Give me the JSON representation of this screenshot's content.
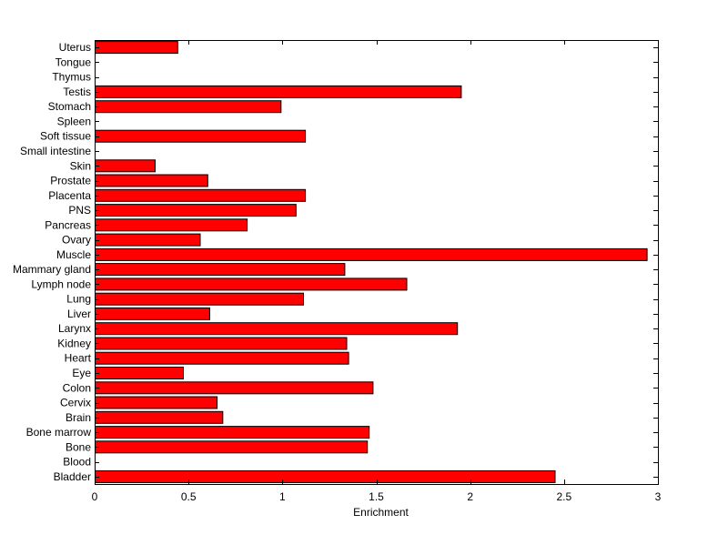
{
  "chart_data": {
    "type": "bar",
    "orientation": "horizontal",
    "title": "",
    "xlabel": "Enrichment",
    "ylabel": "",
    "xlim": [
      0,
      3
    ],
    "xticks": [
      "0",
      "0.5",
      "1",
      "1.5",
      "2",
      "2.5",
      "3"
    ],
    "grid": false,
    "bar_color": "#ff0000",
    "bar_edge_color": "#000000",
    "categories": [
      "Bladder",
      "Blood",
      "Bone",
      "Bone marrow",
      "Brain",
      "Cervix",
      "Colon",
      "Eye",
      "Heart",
      "Kidney",
      "Larynx",
      "Liver",
      "Lung",
      "Lymph node",
      "Mammary gland",
      "Muscle",
      "Ovary",
      "Pancreas",
      "PNS",
      "Placenta",
      "Prostate",
      "Skin",
      "Small intestine",
      "Soft tissue",
      "Spleen",
      "Stomach",
      "Testis",
      "Thymus",
      "Tongue",
      "Uterus"
    ],
    "values": [
      2.45,
      0,
      1.45,
      1.46,
      0.68,
      0.65,
      1.48,
      0.47,
      1.35,
      1.34,
      1.93,
      0.61,
      1.11,
      1.66,
      1.33,
      2.94,
      0.56,
      0.81,
      1.07,
      1.12,
      0.6,
      0.32,
      0,
      1.12,
      0,
      0.99,
      1.95,
      0,
      0,
      0.44
    ]
  }
}
